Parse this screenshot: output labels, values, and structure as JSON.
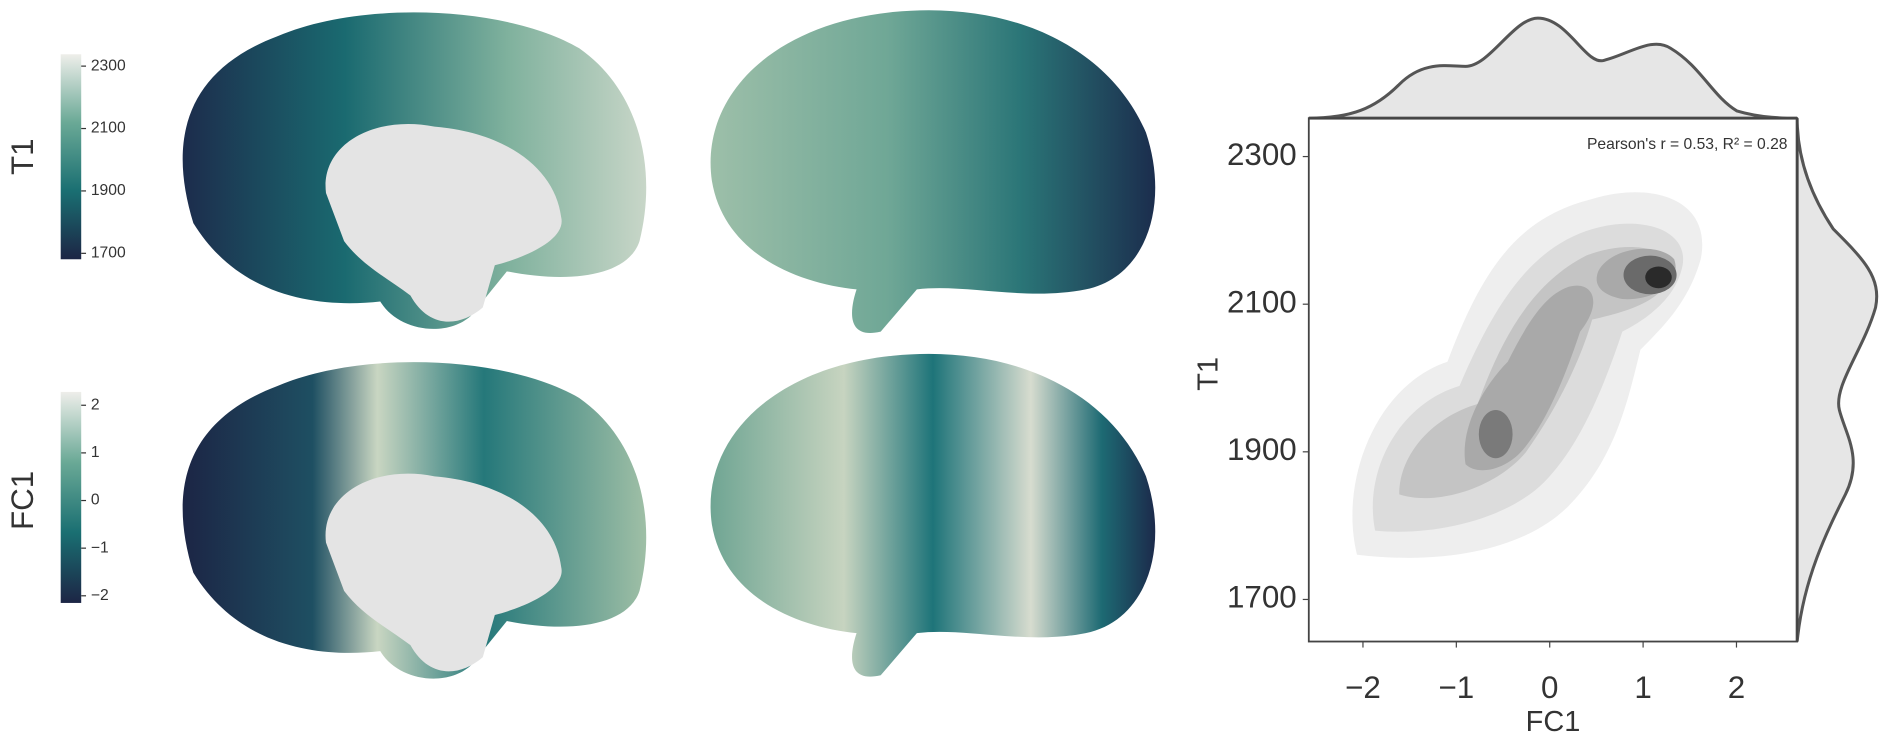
{
  "chart_data": [
    {
      "type": "colorbar",
      "label": "T1",
      "ylim": [
        1681,
        2338
      ],
      "yticks": [
        1700,
        1900,
        2100,
        2300
      ],
      "colors": [
        "#1c2545",
        "#1a6f72",
        "#6aa996",
        "#eeeeea"
      ]
    },
    {
      "type": "colorbar",
      "label": "FC1",
      "ylim": [
        -2.15,
        2.28
      ],
      "yticks": [
        {
          "value": -2,
          "label": "−2"
        },
        {
          "value": -1,
          "label": "−1"
        },
        0,
        1,
        2
      ],
      "colors": [
        "#1c2545",
        "#1a6f72",
        "#6aa996",
        "#eeeeea"
      ]
    },
    {
      "type": "kde",
      "annotation": "Pearson's r = 0.53, R² = 0.28",
      "x_label": "FC1",
      "y_label": "T1",
      "xlim": [
        -2.58,
        2.65
      ],
      "xticks": [
        {
          "value": -2,
          "label": "−2"
        },
        {
          "value": -1,
          "label": "−1"
        },
        0,
        1,
        2
      ],
      "ylim": [
        1643,
        2352
      ],
      "yticks": [
        1700,
        1900,
        2100,
        2300
      ]
    }
  ]
}
